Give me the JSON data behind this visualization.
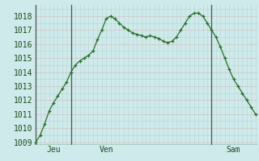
{
  "y_values": [
    1009.0,
    1009.5,
    1010.3,
    1011.2,
    1011.8,
    1012.3,
    1012.8,
    1013.3,
    1014.0,
    1014.5,
    1014.8,
    1015.0,
    1015.2,
    1015.5,
    1016.3,
    1017.0,
    1017.8,
    1018.0,
    1017.8,
    1017.5,
    1017.2,
    1017.0,
    1016.8,
    1016.7,
    1016.6,
    1016.5,
    1016.6,
    1016.5,
    1016.4,
    1016.2,
    1016.1,
    1016.2,
    1016.5,
    1017.0,
    1017.5,
    1018.0,
    1018.2,
    1018.2,
    1018.0,
    1017.5,
    1017.0,
    1016.5,
    1015.8,
    1015.0,
    1014.2,
    1013.5,
    1013.0,
    1012.5,
    1012.0,
    1011.5,
    1011.0
  ],
  "n_points": 51,
  "x_vlines": [
    0,
    8,
    40
  ],
  "x_tick_positions": [
    4,
    16,
    45
  ],
  "x_tick_labels": [
    "Jeu",
    "Ven",
    "Sam"
  ],
  "y_min": 1008.8,
  "y_max": 1018.8,
  "y_ticks": [
    1009,
    1010,
    1011,
    1012,
    1013,
    1014,
    1015,
    1016,
    1017,
    1018
  ],
  "line_color": "#2a6e2a",
  "marker_color": "#2a6e2a",
  "bg_color": "#ceeaea",
  "grid_color": "#b8d4d4",
  "grid_color_red": "#d4b8b8",
  "vline_color": "#505050",
  "axis_color": "#1a4a1a",
  "bottom_bar_color": "#2a5a2a",
  "label_fontsize": 7.0
}
